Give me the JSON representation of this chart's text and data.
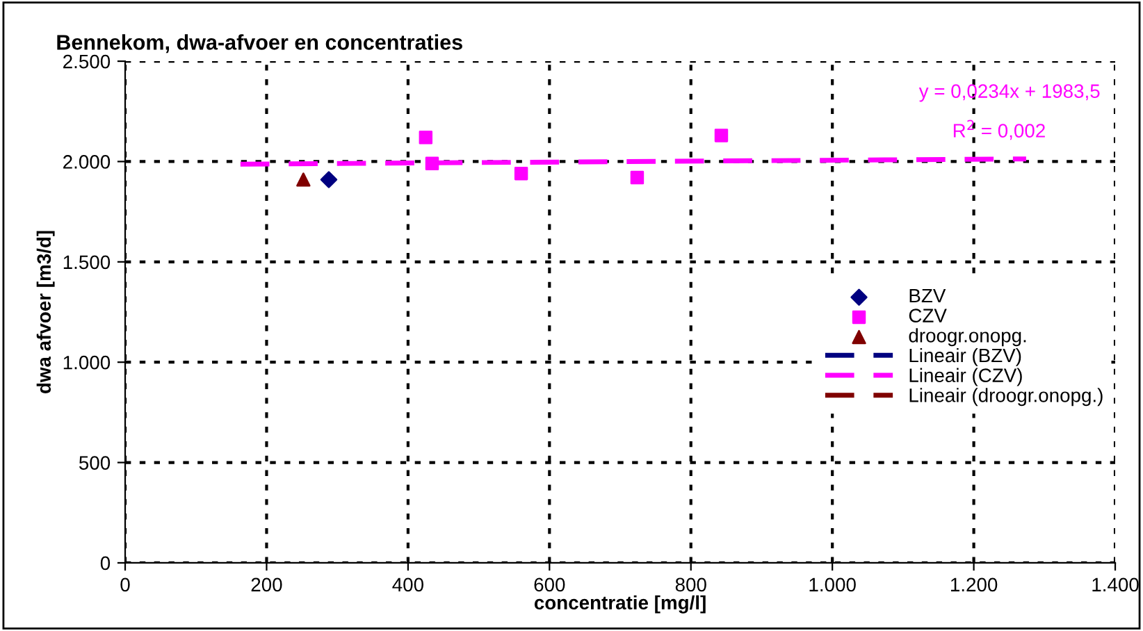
{
  "chart_data": {
    "type": "scatter",
    "title": "Bennekom, dwa-afvoer en concentraties",
    "xlabel": "concentratie [mg/l]",
    "ylabel": "dwa afvoer [m3/d]",
    "series": [
      {
        "name": "BZV",
        "marker": "diamond",
        "color": "#000080",
        "x": [
          288
        ],
        "values": [
          1910
        ]
      },
      {
        "name": "CZV",
        "marker": "square",
        "color": "#ff00ff",
        "x": [
          425,
          434,
          560,
          724,
          843
        ],
        "values": [
          2120,
          1990,
          1940,
          1920,
          2130
        ]
      },
      {
        "name": "droogr.onopg.",
        "marker": "triangle",
        "color": "#800000",
        "x": [
          252
        ],
        "values": [
          1910
        ]
      },
      {
        "name": "Lineair (BZV)",
        "type": "line",
        "line_style": "dashed",
        "color": "#000080"
      },
      {
        "name": "Lineair (CZV)",
        "type": "line",
        "line_style": "dashed",
        "color": "#ff00ff",
        "x": [
          163,
          1274
        ],
        "values": [
          1987,
          2013
        ]
      },
      {
        "name": "Lineair (droogr.onopg.)",
        "type": "line",
        "line_style": "dashed",
        "color": "#800000"
      }
    ],
    "annotations": [
      "y = 0,0234x + 1983,5",
      "R$^{2}$ = 0,002"
    ],
    "xlim": [
      0,
      1400
    ],
    "ylim": [
      0,
      2500
    ],
    "xticks": [
      0,
      200,
      400,
      600,
      800,
      {
        "value": 1000,
        "label": "1.000"
      },
      {
        "value": 1200,
        "label": "1.200"
      },
      {
        "value": 1400,
        "label": "1.400"
      }
    ],
    "yticks": [
      0,
      500,
      {
        "value": 1000,
        "label": "1.000"
      },
      {
        "value": 1500,
        "label": "1.500"
      },
      {
        "value": 2000,
        "label": "2.000"
      },
      {
        "value": 2500,
        "label": "2.500"
      }
    ],
    "grid": true,
    "legend": "right"
  }
}
